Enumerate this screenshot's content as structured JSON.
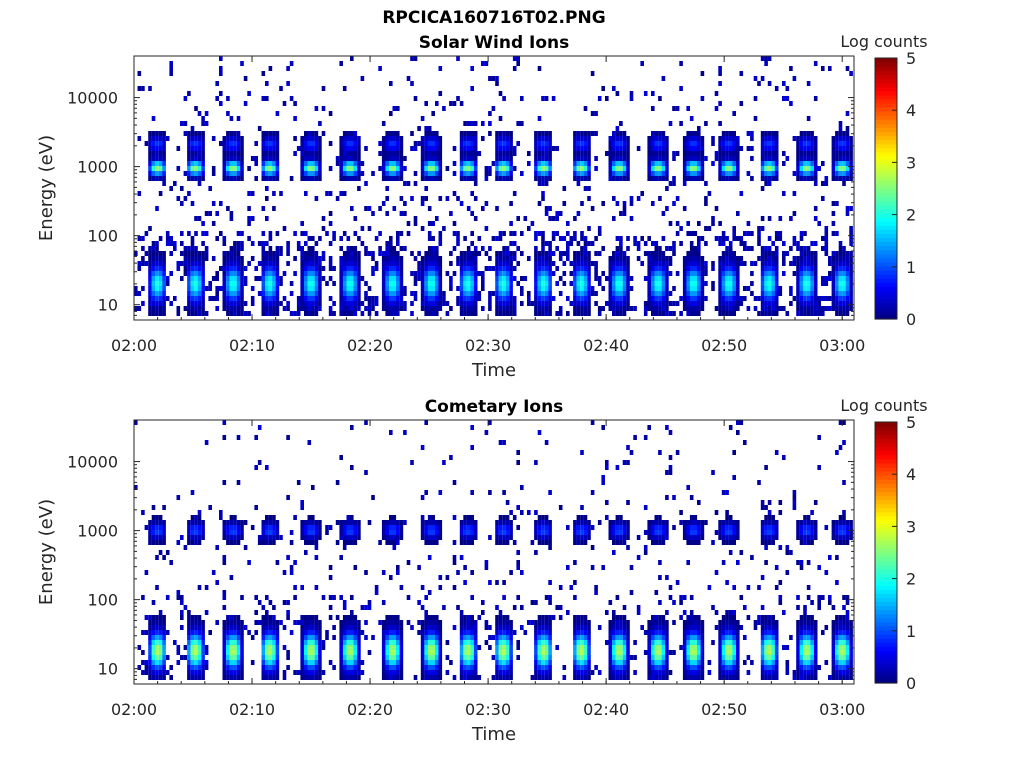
{
  "figure": {
    "filename": "RPCICA160716T02.PNG"
  },
  "colormap": "jet",
  "chart_data": [
    {
      "type": "heatmap",
      "title": "Solar Wind Ions",
      "xlabel": "Time",
      "ylabel": "Energy (eV)",
      "y_scale": "log",
      "ylim": [
        6,
        40000
      ],
      "xlim": [
        "02:00",
        "03:01"
      ],
      "x_ticks": [
        "02:00",
        "02:10",
        "02:20",
        "02:30",
        "02:40",
        "02:50",
        "03:00"
      ],
      "y_ticks": [
        {
          "value": 10,
          "label": "10"
        },
        {
          "value": 100,
          "label": "100"
        },
        {
          "value": 1000,
          "label": "1000"
        },
        {
          "value": 10000,
          "label": "10000"
        }
      ],
      "colorbar": {
        "label": "Log counts",
        "min": 0,
        "max": 5,
        "ticks": [
          "0",
          "1",
          "2",
          "3",
          "4",
          "5"
        ]
      },
      "sweep_start_minutes": [
        1.0,
        4.2,
        7.4,
        10.5,
        14.0,
        17.3,
        20.9,
        24.2,
        27.3,
        30.3,
        33.7,
        36.9,
        40.1,
        43.4,
        46.4,
        49.4,
        52.8,
        56.0,
        59.0
      ],
      "bands": [
        {
          "center_eV": 950,
          "log_count_peak": 2.6,
          "description": "solar wind peak"
        },
        {
          "center_eV": 2100,
          "log_count_peak": 0.9,
          "description": "alpha peak"
        },
        {
          "center_eV": 20,
          "log_count_peak": 2.0,
          "description": "low-energy band"
        }
      ],
      "background_log_counts": 0.3
    },
    {
      "type": "heatmap",
      "title": "Cometary Ions",
      "xlabel": "Time",
      "ylabel": "Energy (eV)",
      "y_scale": "log",
      "ylim": [
        6,
        40000
      ],
      "xlim": [
        "02:00",
        "03:01"
      ],
      "x_ticks": [
        "02:00",
        "02:10",
        "02:20",
        "02:30",
        "02:40",
        "02:50",
        "03:00"
      ],
      "y_ticks": [
        {
          "value": 10,
          "label": "10"
        },
        {
          "value": 100,
          "label": "100"
        },
        {
          "value": 1000,
          "label": "1000"
        },
        {
          "value": 10000,
          "label": "10000"
        }
      ],
      "colorbar": {
        "label": "Log counts",
        "min": 0,
        "max": 5,
        "ticks": [
          "0",
          "1",
          "2",
          "3",
          "4",
          "5"
        ]
      },
      "sweep_start_minutes": [
        1.0,
        4.2,
        7.4,
        10.5,
        14.0,
        17.3,
        20.9,
        24.2,
        27.3,
        30.3,
        33.7,
        36.9,
        40.1,
        43.4,
        46.4,
        49.4,
        52.8,
        56.0,
        59.0
      ],
      "bands": [
        {
          "center_eV": 1000,
          "log_count_peak": 1.0,
          "description": "weak 1 keV blob"
        },
        {
          "center_eV": 18,
          "log_count_peak": 2.8,
          "description": "cometary ion band"
        }
      ],
      "background_log_counts": 0.15
    }
  ]
}
